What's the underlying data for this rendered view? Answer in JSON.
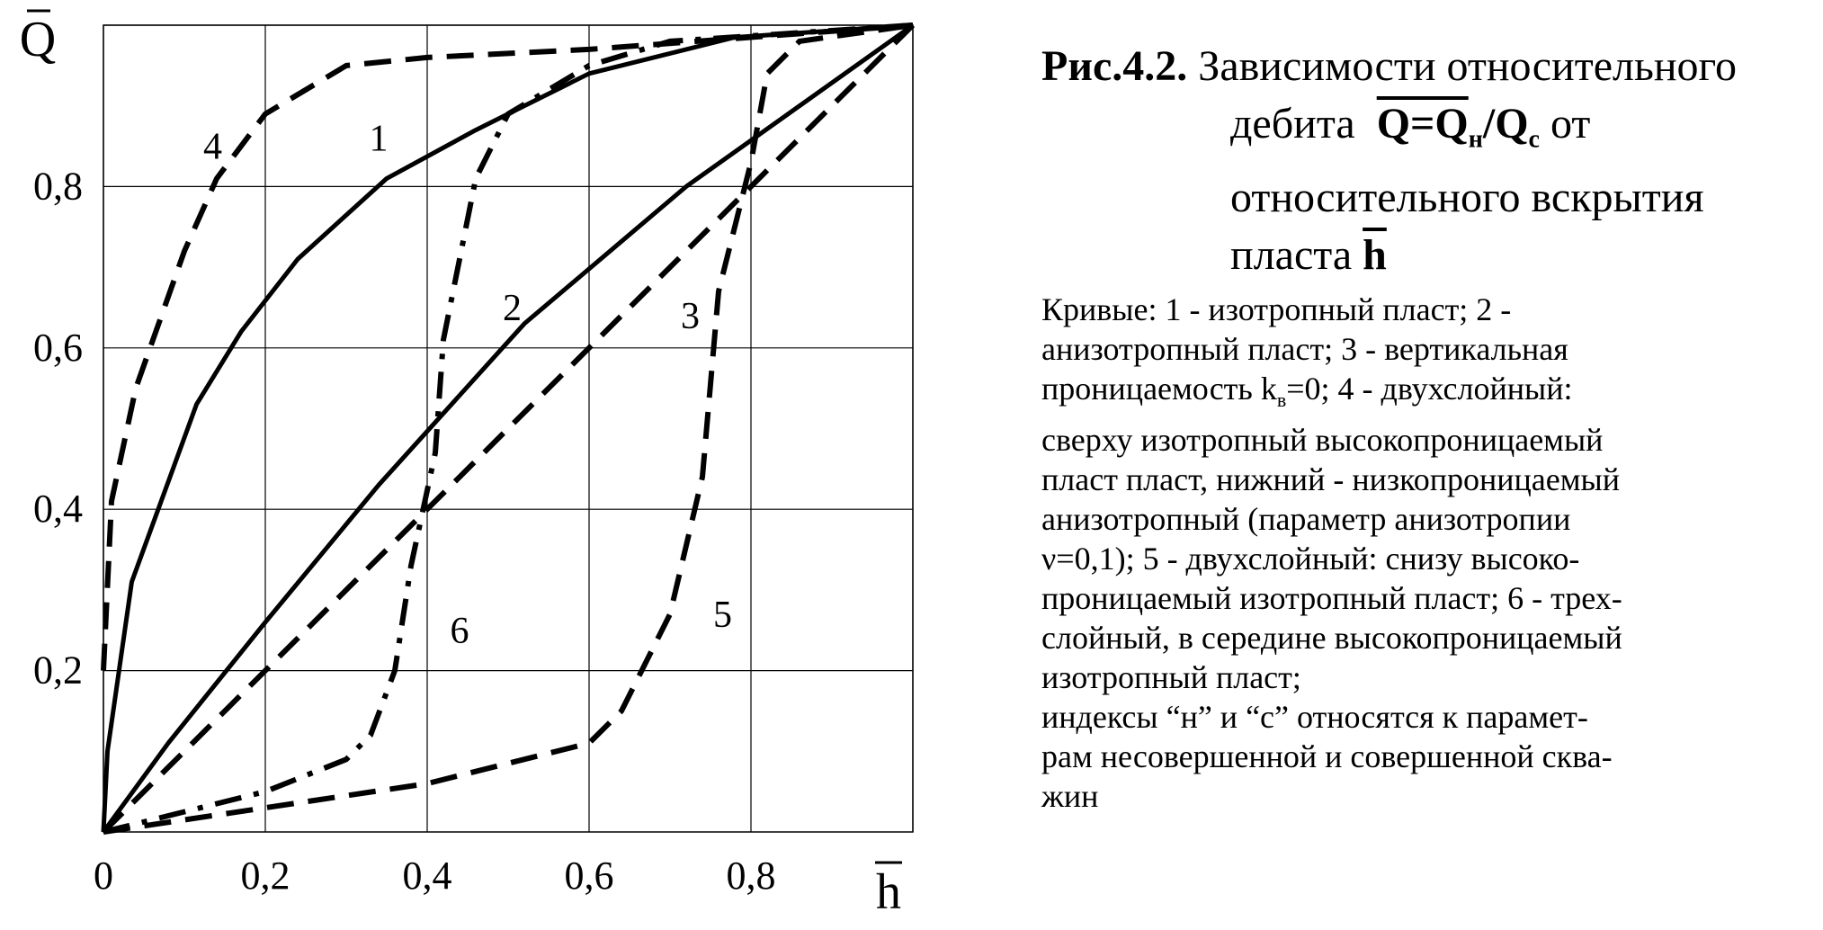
{
  "chart_data": {
    "type": "line",
    "xlabel": "h",
    "ylabel": "Q",
    "xlim": [
      0,
      1.0
    ],
    "ylim": [
      0,
      1.0
    ],
    "x_ticks": [
      0,
      0.2,
      0.4,
      0.6,
      0.8
    ],
    "x_tick_labels": [
      "0",
      "0,2",
      "0,4",
      "0,6",
      "0,8"
    ],
    "y_ticks": [
      0.2,
      0.4,
      0.6,
      0.8
    ],
    "y_tick_labels": [
      "0,2",
      "0,4",
      "0,6",
      "0,8"
    ],
    "grid": true,
    "series": [
      {
        "name": "1",
        "style": "solid",
        "label_at": [
          0.34,
          0.86
        ],
        "points": [
          [
            0,
            0
          ],
          [
            0.005,
            0.1
          ],
          [
            0.035,
            0.31
          ],
          [
            0.115,
            0.53
          ],
          [
            0.17,
            0.62
          ],
          [
            0.24,
            0.71
          ],
          [
            0.35,
            0.81
          ],
          [
            0.46,
            0.87
          ],
          [
            0.6,
            0.94
          ],
          [
            0.78,
            0.985
          ],
          [
            1.0,
            1.0
          ]
        ]
      },
      {
        "name": "2",
        "style": "solid",
        "label_at": [
          0.505,
          0.65
        ],
        "points": [
          [
            0,
            0
          ],
          [
            0.08,
            0.11
          ],
          [
            0.2,
            0.26
          ],
          [
            0.34,
            0.43
          ],
          [
            0.52,
            0.63
          ],
          [
            0.72,
            0.8
          ],
          [
            0.86,
            0.9
          ],
          [
            1.0,
            1.0
          ]
        ]
      },
      {
        "name": "3",
        "style": "dash",
        "label_at": [
          0.725,
          0.64
        ],
        "points": [
          [
            0,
            0
          ],
          [
            1.0,
            1.0
          ]
        ]
      },
      {
        "name": "4",
        "style": "dash",
        "label_at": [
          0.135,
          0.85
        ],
        "points": [
          [
            0,
            0.2
          ],
          [
            0.01,
            0.41
          ],
          [
            0.04,
            0.55
          ],
          [
            0.1,
            0.72
          ],
          [
            0.14,
            0.81
          ],
          [
            0.2,
            0.89
          ],
          [
            0.3,
            0.95
          ],
          [
            0.4,
            0.96
          ],
          [
            0.6,
            0.97
          ],
          [
            1.0,
            1.0
          ]
        ]
      },
      {
        "name": "5",
        "style": "dash",
        "label_at": [
          0.765,
          0.27
        ],
        "points": [
          [
            0,
            0
          ],
          [
            0.2,
            0.03
          ],
          [
            0.4,
            0.06
          ],
          [
            0.6,
            0.11
          ],
          [
            0.64,
            0.15
          ],
          [
            0.7,
            0.27
          ],
          [
            0.74,
            0.44
          ],
          [
            0.76,
            0.67
          ],
          [
            0.8,
            0.83
          ],
          [
            0.82,
            0.94
          ],
          [
            0.86,
            0.98
          ],
          [
            1.0,
            1.0
          ]
        ]
      },
      {
        "name": "6",
        "style": "dashdot",
        "label_at": [
          0.44,
          0.25
        ],
        "points": [
          [
            0,
            0
          ],
          [
            0.2,
            0.05
          ],
          [
            0.3,
            0.09
          ],
          [
            0.33,
            0.12
          ],
          [
            0.36,
            0.2
          ],
          [
            0.38,
            0.33
          ],
          [
            0.41,
            0.47
          ],
          [
            0.42,
            0.61
          ],
          [
            0.44,
            0.71
          ],
          [
            0.46,
            0.81
          ],
          [
            0.5,
            0.89
          ],
          [
            0.6,
            0.95
          ],
          [
            0.7,
            0.98
          ],
          [
            1.0,
            1.0
          ]
        ]
      }
    ]
  },
  "caption": {
    "title_prefix": "Рис.4.2.",
    "title_line1": "Зависимости относительного",
    "title_line2_a": "дебита",
    "title_formula": "Q=Q",
    "title_sub1": "н",
    "title_slash": "/Q",
    "title_sub2": "с",
    "title_line2_b": "от",
    "title_line3": "относительного вскрытия",
    "title_line4_a": "пласта",
    "title_line4_h": "h",
    "body_line1": "Кривые: 1 - изотропный пласт; 2 -",
    "body_line2": "анизотропный пласт; 3 - вертикальная",
    "body_line3_a": "проницаемость k",
    "body_line3_sub": "в",
    "body_line3_b": "=0; 4 - двухслойный:",
    "body_line4": "сверху изотропный высокопроницаемый",
    "body_line5": "пласт пласт, нижний - низкопроницаемый",
    "body_line6": "анизотропный (параметр анизотропии",
    "body_line7": "ν=0,1); 5 - двухслойный: снизу высоко-",
    "body_line8": "проницаемый изотропный пласт; 6 - трех-",
    "body_line9": "слойный, в середине высокопроницаемый",
    "body_line10": "изотропный пласт;",
    "body_line11": " индексы “н” и “с” относятся к парамет-",
    "body_line12": "рам несовершенной и совершенной сква-",
    "body_line13": "жин"
  }
}
